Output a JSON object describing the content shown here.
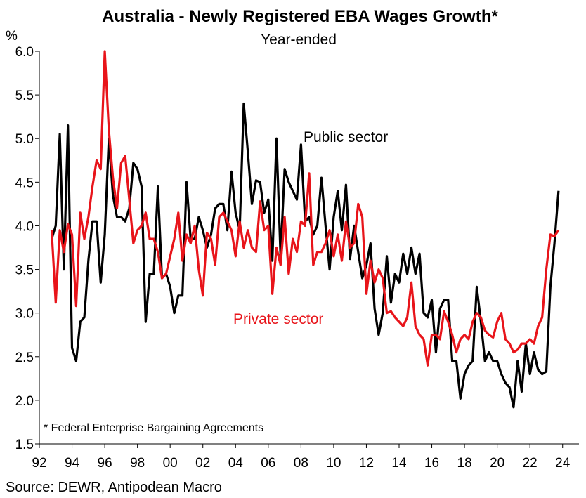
{
  "chart_data": {
    "type": "line",
    "title": "Australia - Newly Registered EBA Wages Growth*",
    "subtitle": "Year-ended",
    "ylabel": "%",
    "ylim": [
      1.5,
      6.0
    ],
    "xlim": [
      1992.0,
      2025.0
    ],
    "yticks": [
      "6.0",
      "5.5",
      "5.0",
      "4.5",
      "4.0",
      "3.5",
      "3.0",
      "2.5",
      "2.0",
      "1.5"
    ],
    "xticks": [
      "92",
      "94",
      "96",
      "98",
      "00",
      "02",
      "04",
      "06",
      "08",
      "10",
      "12",
      "14",
      "16",
      "18",
      "20",
      "22",
      "24"
    ],
    "grid": false,
    "annotations": {
      "public_label": "Public sector",
      "private_label": "Private sector",
      "footnote": "*  Federal Enterprise Bargaining Agreements",
      "source": "Source: DEWR, Antipodean Macro"
    },
    "series": [
      {
        "name": "Public sector",
        "color": "#000000",
        "points": [
          [
            1992.75,
            3.85
          ],
          [
            1993.0,
            4.0
          ],
          [
            1993.25,
            5.05
          ],
          [
            1993.5,
            3.5
          ],
          [
            1993.75,
            5.15
          ],
          [
            1994.0,
            2.6
          ],
          [
            1994.25,
            2.45
          ],
          [
            1994.5,
            2.9
          ],
          [
            1994.75,
            2.95
          ],
          [
            1995.0,
            3.6
          ],
          [
            1995.25,
            4.05
          ],
          [
            1995.5,
            4.05
          ],
          [
            1995.75,
            3.35
          ],
          [
            1996.0,
            3.9
          ],
          [
            1996.25,
            5.0
          ],
          [
            1996.5,
            4.35
          ],
          [
            1996.75,
            4.1
          ],
          [
            1997.0,
            4.1
          ],
          [
            1997.25,
            4.05
          ],
          [
            1997.5,
            4.2
          ],
          [
            1997.75,
            4.72
          ],
          [
            1998.0,
            4.65
          ],
          [
            1998.25,
            4.45
          ],
          [
            1998.5,
            2.9
          ],
          [
            1998.75,
            3.45
          ],
          [
            1999.0,
            3.45
          ],
          [
            1999.25,
            4.45
          ],
          [
            1999.5,
            3.4
          ],
          [
            1999.75,
            3.45
          ],
          [
            2000.0,
            3.3
          ],
          [
            2000.25,
            3.0
          ],
          [
            2000.5,
            3.2
          ],
          [
            2000.75,
            3.2
          ],
          [
            2001.0,
            4.5
          ],
          [
            2001.25,
            3.85
          ],
          [
            2001.5,
            3.85
          ],
          [
            2001.75,
            4.1
          ],
          [
            2002.0,
            3.95
          ],
          [
            2002.25,
            3.75
          ],
          [
            2002.5,
            3.9
          ],
          [
            2002.75,
            4.2
          ],
          [
            2003.0,
            4.25
          ],
          [
            2003.25,
            4.25
          ],
          [
            2003.5,
            3.95
          ],
          [
            2003.75,
            4.62
          ],
          [
            2004.0,
            4.15
          ],
          [
            2004.25,
            3.95
          ],
          [
            2004.5,
            5.4
          ],
          [
            2004.75,
            4.85
          ],
          [
            2005.0,
            4.25
          ],
          [
            2005.25,
            4.52
          ],
          [
            2005.5,
            4.5
          ],
          [
            2005.75,
            4.15
          ],
          [
            2006.0,
            4.3
          ],
          [
            2006.25,
            3.6
          ],
          [
            2006.5,
            5.0
          ],
          [
            2006.75,
            3.65
          ],
          [
            2007.0,
            4.65
          ],
          [
            2007.25,
            4.5
          ],
          [
            2007.5,
            4.4
          ],
          [
            2007.75,
            4.3
          ],
          [
            2008.0,
            4.93
          ],
          [
            2008.25,
            4.05
          ],
          [
            2008.5,
            4.1
          ],
          [
            2008.75,
            3.9
          ],
          [
            2009.0,
            4.0
          ],
          [
            2009.25,
            4.55
          ],
          [
            2009.5,
            4.0
          ],
          [
            2009.75,
            3.5
          ],
          [
            2010.0,
            4.1
          ],
          [
            2010.25,
            4.4
          ],
          [
            2010.5,
            3.95
          ],
          [
            2010.75,
            4.47
          ],
          [
            2011.0,
            3.62
          ],
          [
            2011.25,
            4.0
          ],
          [
            2011.5,
            3.7
          ],
          [
            2011.75,
            3.4
          ],
          [
            2012.0,
            3.55
          ],
          [
            2012.25,
            3.8
          ],
          [
            2012.5,
            3.05
          ],
          [
            2012.75,
            2.75
          ],
          [
            2013.0,
            3.0
          ],
          [
            2013.25,
            3.65
          ],
          [
            2013.5,
            3.12
          ],
          [
            2013.75,
            3.45
          ],
          [
            2014.0,
            3.35
          ],
          [
            2014.25,
            3.68
          ],
          [
            2014.5,
            3.45
          ],
          [
            2014.75,
            3.75
          ],
          [
            2015.0,
            3.45
          ],
          [
            2015.25,
            3.68
          ],
          [
            2015.5,
            3.0
          ],
          [
            2015.75,
            2.95
          ],
          [
            2016.0,
            3.15
          ],
          [
            2016.25,
            2.55
          ],
          [
            2016.5,
            3.05
          ],
          [
            2016.75,
            3.15
          ],
          [
            2017.0,
            3.15
          ],
          [
            2017.25,
            2.45
          ],
          [
            2017.5,
            2.45
          ],
          [
            2017.75,
            2.02
          ],
          [
            2018.0,
            2.3
          ],
          [
            2018.25,
            2.4
          ],
          [
            2018.5,
            2.45
          ],
          [
            2018.75,
            3.3
          ],
          [
            2019.0,
            2.9
          ],
          [
            2019.25,
            2.45
          ],
          [
            2019.5,
            2.55
          ],
          [
            2019.75,
            2.45
          ],
          [
            2020.0,
            2.45
          ],
          [
            2020.25,
            2.3
          ],
          [
            2020.5,
            2.2
          ],
          [
            2020.75,
            2.15
          ],
          [
            2021.0,
            1.92
          ],
          [
            2021.25,
            2.45
          ],
          [
            2021.5,
            2.1
          ],
          [
            2021.75,
            2.65
          ],
          [
            2022.0,
            2.3
          ],
          [
            2022.25,
            2.55
          ],
          [
            2022.5,
            2.35
          ],
          [
            2022.75,
            2.3
          ],
          [
            2023.0,
            2.33
          ],
          [
            2023.25,
            3.3
          ],
          [
            2023.5,
            3.8
          ],
          [
            2023.75,
            4.4
          ]
        ]
      },
      {
        "name": "Private sector",
        "color": "#e8141a",
        "points": [
          [
            1992.75,
            3.95
          ],
          [
            1993.0,
            3.12
          ],
          [
            1993.25,
            3.95
          ],
          [
            1993.5,
            3.7
          ],
          [
            1993.75,
            4.02
          ],
          [
            1994.0,
            3.9
          ],
          [
            1994.25,
            3.08
          ],
          [
            1994.5,
            4.15
          ],
          [
            1994.75,
            3.85
          ],
          [
            1995.0,
            4.1
          ],
          [
            1995.25,
            4.45
          ],
          [
            1995.5,
            4.75
          ],
          [
            1995.75,
            4.65
          ],
          [
            1996.0,
            6.0
          ],
          [
            1996.25,
            5.1
          ],
          [
            1996.5,
            4.55
          ],
          [
            1996.75,
            4.2
          ],
          [
            1997.0,
            4.72
          ],
          [
            1997.25,
            4.8
          ],
          [
            1997.5,
            4.3
          ],
          [
            1997.75,
            3.8
          ],
          [
            1998.0,
            3.95
          ],
          [
            1998.25,
            4.0
          ],
          [
            1998.5,
            4.15
          ],
          [
            1998.75,
            3.85
          ],
          [
            1999.0,
            3.85
          ],
          [
            1999.25,
            3.7
          ],
          [
            1999.5,
            3.4
          ],
          [
            1999.75,
            3.45
          ],
          [
            2000.0,
            3.65
          ],
          [
            2000.25,
            3.85
          ],
          [
            2000.5,
            4.15
          ],
          [
            2000.75,
            3.6
          ],
          [
            2001.0,
            3.9
          ],
          [
            2001.25,
            3.8
          ],
          [
            2001.5,
            4.0
          ],
          [
            2001.75,
            3.5
          ],
          [
            2002.0,
            3.2
          ],
          [
            2002.25,
            3.92
          ],
          [
            2002.5,
            3.85
          ],
          [
            2002.75,
            3.55
          ],
          [
            2003.0,
            4.1
          ],
          [
            2003.25,
            4.15
          ],
          [
            2003.5,
            4.05
          ],
          [
            2003.75,
            3.95
          ],
          [
            2004.0,
            3.65
          ],
          [
            2004.25,
            4.05
          ],
          [
            2004.5,
            3.75
          ],
          [
            2004.75,
            3.95
          ],
          [
            2005.0,
            3.75
          ],
          [
            2005.25,
            3.7
          ],
          [
            2005.5,
            4.28
          ],
          [
            2005.75,
            3.95
          ],
          [
            2006.0,
            4.0
          ],
          [
            2006.25,
            3.22
          ],
          [
            2006.5,
            3.75
          ],
          [
            2006.75,
            3.55
          ],
          [
            2007.0,
            4.1
          ],
          [
            2007.25,
            3.45
          ],
          [
            2007.5,
            3.85
          ],
          [
            2007.75,
            3.7
          ],
          [
            2008.0,
            4.05
          ],
          [
            2008.25,
            4.0
          ],
          [
            2008.5,
            4.6
          ],
          [
            2008.75,
            3.55
          ],
          [
            2009.0,
            3.7
          ],
          [
            2009.25,
            3.7
          ],
          [
            2009.5,
            3.8
          ],
          [
            2009.75,
            3.95
          ],
          [
            2010.0,
            3.65
          ],
          [
            2010.25,
            3.9
          ],
          [
            2010.5,
            3.6
          ],
          [
            2010.75,
            4.05
          ],
          [
            2011.0,
            3.75
          ],
          [
            2011.25,
            3.8
          ],
          [
            2011.5,
            4.25
          ],
          [
            2011.75,
            4.1
          ],
          [
            2012.0,
            3.22
          ],
          [
            2012.25,
            3.6
          ],
          [
            2012.5,
            3.35
          ],
          [
            2012.75,
            3.5
          ],
          [
            2013.0,
            3.4
          ],
          [
            2013.25,
            3.0
          ],
          [
            2013.5,
            3.02
          ],
          [
            2013.75,
            2.95
          ],
          [
            2014.0,
            2.9
          ],
          [
            2014.25,
            2.85
          ],
          [
            2014.5,
            2.95
          ],
          [
            2014.75,
            3.35
          ],
          [
            2015.0,
            2.85
          ],
          [
            2015.25,
            2.75
          ],
          [
            2015.5,
            2.7
          ],
          [
            2015.75,
            2.4
          ],
          [
            2016.0,
            2.75
          ],
          [
            2016.25,
            2.75
          ],
          [
            2016.5,
            2.7
          ],
          [
            2016.75,
            3.02
          ],
          [
            2017.0,
            2.9
          ],
          [
            2017.25,
            2.75
          ],
          [
            2017.5,
            2.55
          ],
          [
            2017.75,
            2.7
          ],
          [
            2018.0,
            2.75
          ],
          [
            2018.25,
            2.7
          ],
          [
            2018.5,
            2.9
          ],
          [
            2018.75,
            3.0
          ],
          [
            2019.0,
            2.95
          ],
          [
            2019.25,
            2.8
          ],
          [
            2019.5,
            2.75
          ],
          [
            2019.75,
            2.72
          ],
          [
            2020.0,
            2.9
          ],
          [
            2020.25,
            3.0
          ],
          [
            2020.5,
            2.7
          ],
          [
            2020.75,
            2.65
          ],
          [
            2021.0,
            2.55
          ],
          [
            2021.25,
            2.58
          ],
          [
            2021.5,
            2.65
          ],
          [
            2021.75,
            2.65
          ],
          [
            2022.0,
            2.7
          ],
          [
            2022.25,
            2.65
          ],
          [
            2022.5,
            2.85
          ],
          [
            2022.75,
            2.95
          ],
          [
            2023.0,
            3.5
          ],
          [
            2023.25,
            3.9
          ],
          [
            2023.5,
            3.88
          ],
          [
            2023.75,
            3.95
          ]
        ]
      }
    ]
  }
}
